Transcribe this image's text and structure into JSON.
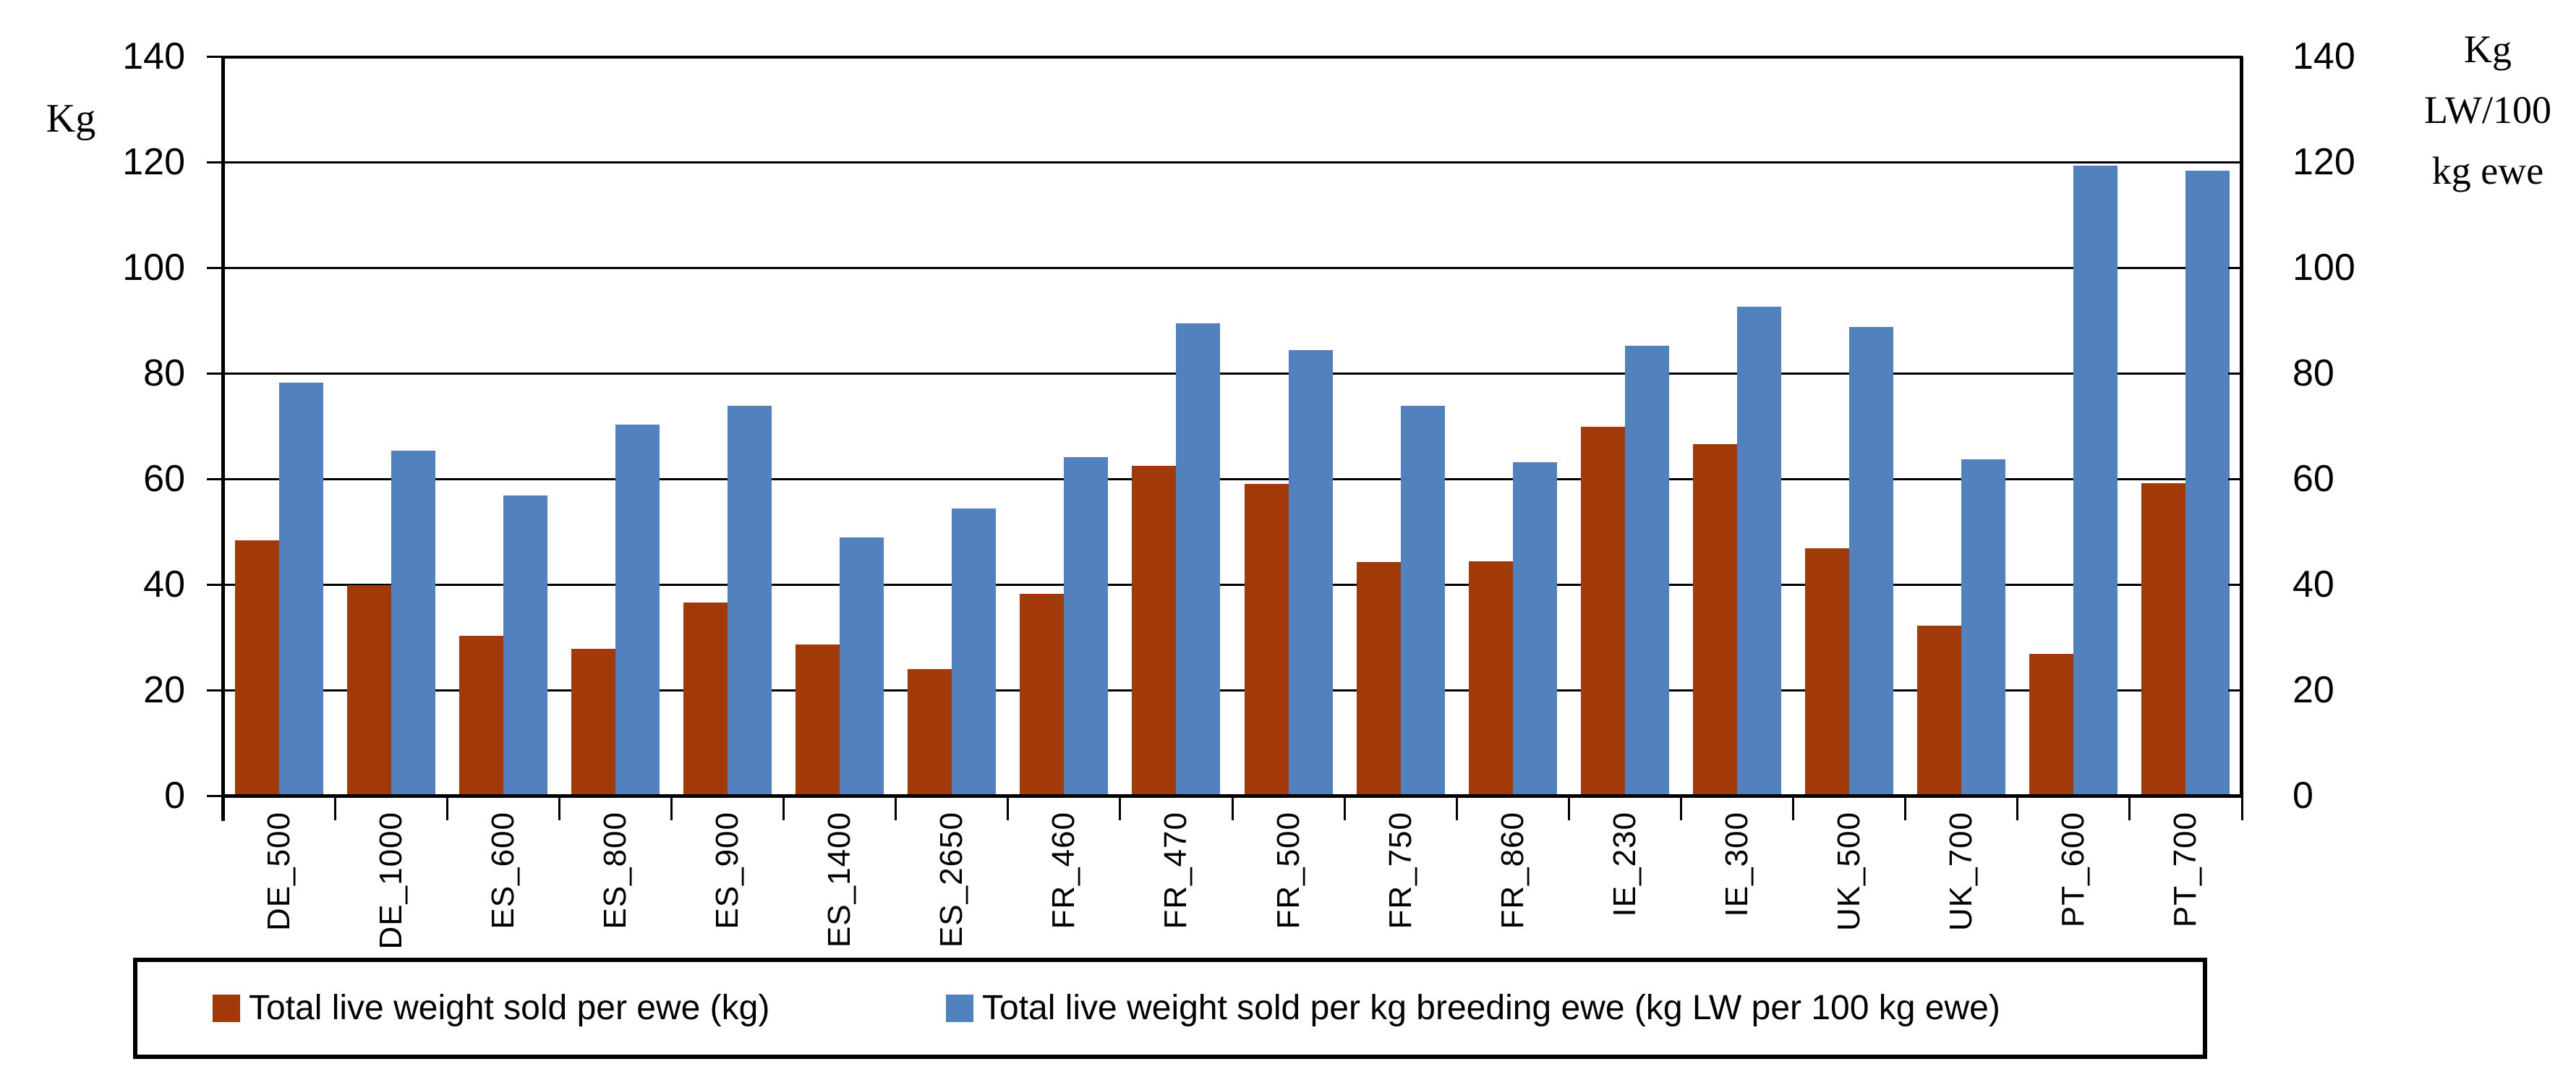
{
  "chart_data": {
    "type": "bar",
    "title": "",
    "categories": [
      "DE_500",
      "DE_1000",
      "ES_600",
      "ES_800",
      "ES_900",
      "ES_1400",
      "ES_2650",
      "FR_460",
      "FR_470",
      "FR_500",
      "FR_750",
      "FR_860",
      "IE_230",
      "IE_300",
      "UK_500",
      "UK_700",
      "PT_600",
      "PT_700"
    ],
    "series": [
      {
        "name": "Total live weight sold per ewe (kg)",
        "color": "#A23908",
        "values": [
          48.4,
          39.8,
          30.3,
          27.8,
          36.6,
          28.6,
          24.0,
          38.2,
          62.4,
          59.0,
          44.2,
          44.4,
          69.8,
          66.6,
          46.9,
          32.2,
          26.8,
          59.2
        ]
      },
      {
        "name": "Total live weight sold per kg breeding ewe (kg LW per 100 kg ewe)",
        "color": "#5282BE",
        "values": [
          78.2,
          65.3,
          56.9,
          70.3,
          73.9,
          48.9,
          54.4,
          64.1,
          89.5,
          84.4,
          73.8,
          63.1,
          85.2,
          92.6,
          88.8,
          63.7,
          119.3,
          118.4
        ]
      }
    ],
    "left_axis": {
      "title": "Kg",
      "ticks": [
        0,
        20,
        40,
        60,
        80,
        100,
        120,
        140
      ]
    },
    "right_axis": {
      "title": "Kg LW/100 kg ewe",
      "title_lines": [
        "Kg",
        "LW/100",
        "kg ewe"
      ],
      "ticks": [
        0,
        20,
        40,
        60,
        80,
        100,
        120,
        140
      ]
    },
    "ylim": [
      0,
      140
    ],
    "grid": true,
    "legend_position": "bottom",
    "axis_color": "#000000",
    "background_color": "#FFFFFF"
  }
}
